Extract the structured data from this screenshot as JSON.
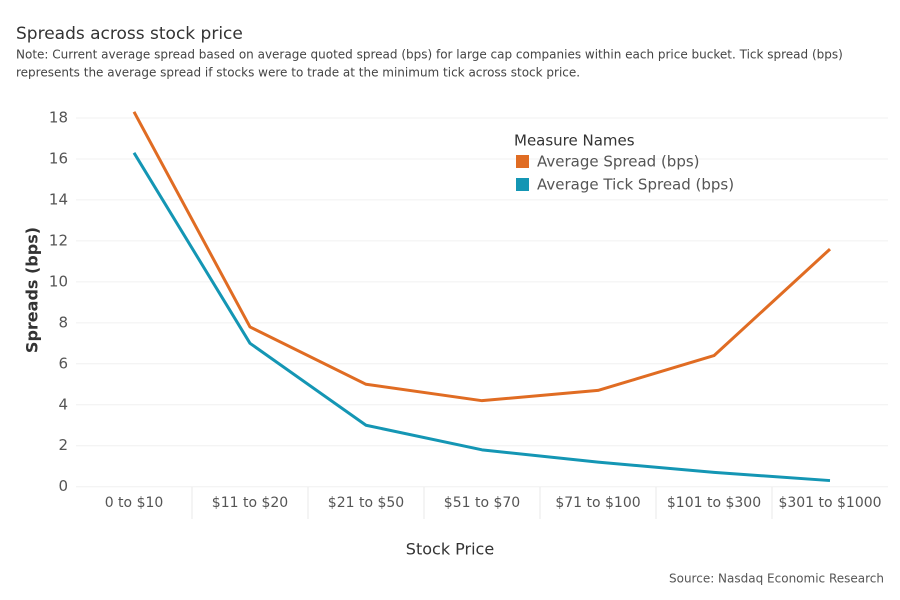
{
  "chart_data": {
    "type": "line",
    "title": "Spreads across stock price",
    "subtitle": [
      "Note: Current average spread based on average quoted spread (bps) for large cap companies within each price bucket.  Tick spread (bps)",
      "represents the average spread if stocks were to trade at the minimum tick across stock price."
    ],
    "x_label": "Stock Price",
    "y_label": "Spreads (bps)",
    "legend_title": "Measure Names",
    "source": "Source: Nasdaq Economic Research",
    "categories": [
      "0 to $10",
      "$11 to $20",
      "$21 to $50",
      "$51 to $70",
      "$71 to $100",
      "$101 to $300",
      "$301 to $1000"
    ],
    "series": [
      {
        "name": "Average Spread (bps)",
        "color": "#e06c23",
        "values": [
          18.3,
          7.8,
          5.0,
          4.2,
          4.7,
          6.4,
          11.6
        ]
      },
      {
        "name": "Average Tick Spread (bps)",
        "color": "#1496b4",
        "values": [
          16.3,
          7.0,
          3.0,
          1.8,
          1.2,
          0.7,
          0.3
        ]
      }
    ],
    "ylim": [
      -0.6,
      19
    ],
    "yticks": [
      0,
      2,
      4,
      6,
      8,
      10,
      12,
      14,
      16,
      18
    ],
    "grid": true
  }
}
